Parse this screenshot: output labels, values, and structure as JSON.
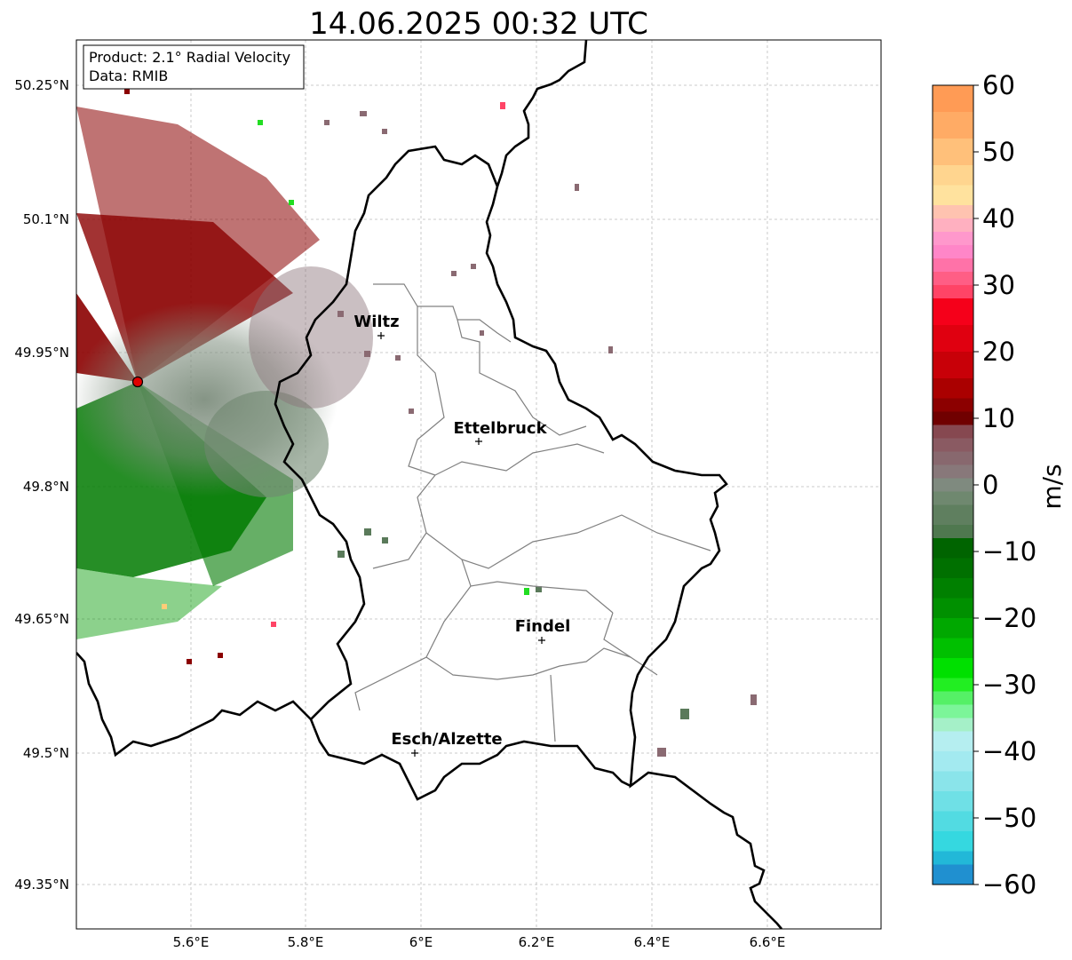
{
  "title": "14.06.2025 00:32 UTC",
  "info_box": {
    "line1": "Product: 2.1° Radial Velocity",
    "line2": "Data: RMIB"
  },
  "lat_ticks": [
    "50.25°N",
    "50.1°N",
    "49.95°N",
    "49.8°N",
    "49.65°N",
    "49.5°N",
    "49.35°N"
  ],
  "lon_ticks": [
    "5.6°E",
    "5.8°E",
    "6°E",
    "6.2°E",
    "6.4°E",
    "6.6°E"
  ],
  "cities": [
    {
      "name": "Wiltz"
    },
    {
      "name": "Ettelbruck"
    },
    {
      "name": "Findel"
    },
    {
      "name": "Esch/Alzette"
    }
  ],
  "colorbar": {
    "label": "m/s",
    "ticks": [
      "60",
      "50",
      "40",
      "30",
      "20",
      "10",
      "0",
      "−10",
      "−20",
      "−30",
      "−40",
      "−50",
      "−60"
    ],
    "min": -60,
    "max": 60
  },
  "colors": {
    "border": "#000000",
    "canton_lines": "#808080",
    "grid": "#bbbbbb",
    "radar_site": "#e00000",
    "approaching": "#008000",
    "receding": "#8b0000",
    "near_zero": "#7f8f7f"
  }
}
